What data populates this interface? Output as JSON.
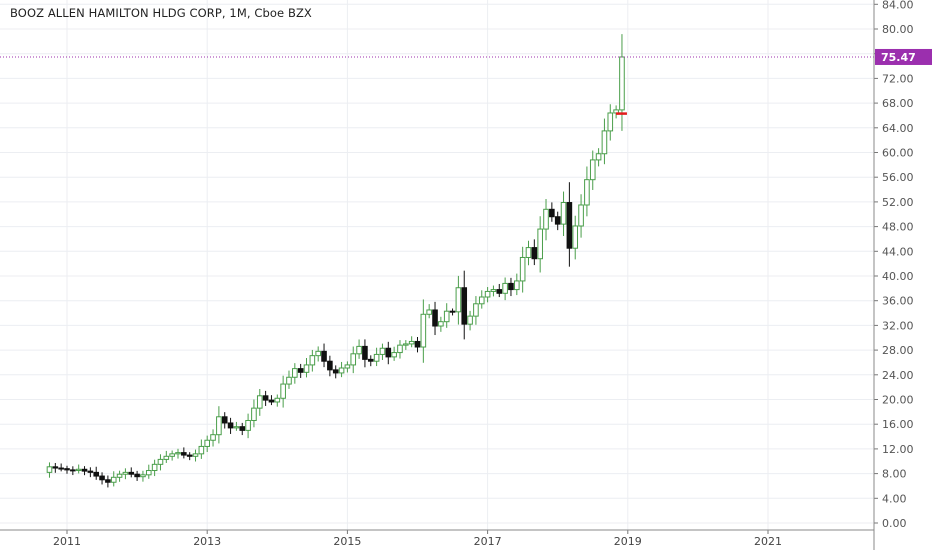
{
  "chart_data": {
    "type": "candlestick",
    "title": "BOOZ ALLEN HAMILTON HLDG CORP, 1M, Cboe BZX",
    "interval": "1M",
    "grid": true,
    "last_price": "75.47",
    "last_price_value": 75.47,
    "y_axis": {
      "ylim": [
        -1,
        86
      ],
      "ticks": [
        "0.00",
        "4.00",
        "8.00",
        "12.00",
        "16.00",
        "20.00",
        "24.00",
        "28.00",
        "32.00",
        "36.00",
        "40.00",
        "44.00",
        "48.00",
        "52.00",
        "56.00",
        "60.00",
        "64.00",
        "68.00",
        "72.00",
        "76.00",
        "80.00",
        "84.00"
      ]
    },
    "x_axis": {
      "ticks": [
        {
          "label": "2011",
          "value": 2011.0
        },
        {
          "label": "2013",
          "value": 2013.0
        },
        {
          "label": "2015",
          "value": 2015.0
        },
        {
          "label": "2017",
          "value": 2017.0
        },
        {
          "label": "2019",
          "value": 2019.0
        },
        {
          "label": "2021",
          "value": 2021.0
        }
      ]
    },
    "series_close": [
      9.1,
      8.9,
      8.8,
      8.6,
      8.5,
      8.7,
      8.4,
      8.2,
      7.6,
      7.0,
      6.6,
      7.4,
      7.9,
      8.2,
      7.9,
      7.5,
      7.8,
      8.5,
      9.5,
      10.3,
      10.8,
      11.2,
      11.4,
      11.0,
      10.8,
      11.2,
      12.4,
      13.4,
      14.3,
      17.2,
      16.2,
      15.4,
      15.6,
      15.0,
      16.6,
      18.6,
      20.6,
      19.9,
      19.6,
      20.2,
      22.5,
      23.6,
      25.0,
      24.4,
      25.6,
      27.1,
      27.8,
      26.2,
      24.8,
      24.3,
      25.1,
      25.6,
      27.4,
      28.6,
      26.5,
      26.2,
      27.3,
      28.3,
      26.9,
      27.6,
      28.8,
      29.0,
      29.4,
      28.5,
      33.8,
      34.5,
      31.9,
      32.6,
      34.3,
      34.2,
      38.1,
      32.2,
      33.5,
      35.5,
      36.6,
      37.5,
      37.8,
      37.2,
      38.8,
      37.8,
      39.2,
      43.0,
      44.6,
      42.8,
      47.6,
      50.8,
      49.6,
      48.4,
      51.9,
      44.5,
      48.1,
      51.5,
      55.6,
      58.8,
      59.8,
      63.5,
      66.4,
      66.9,
      75.47
    ],
    "lowest_bar_low": 66.3
  }
}
